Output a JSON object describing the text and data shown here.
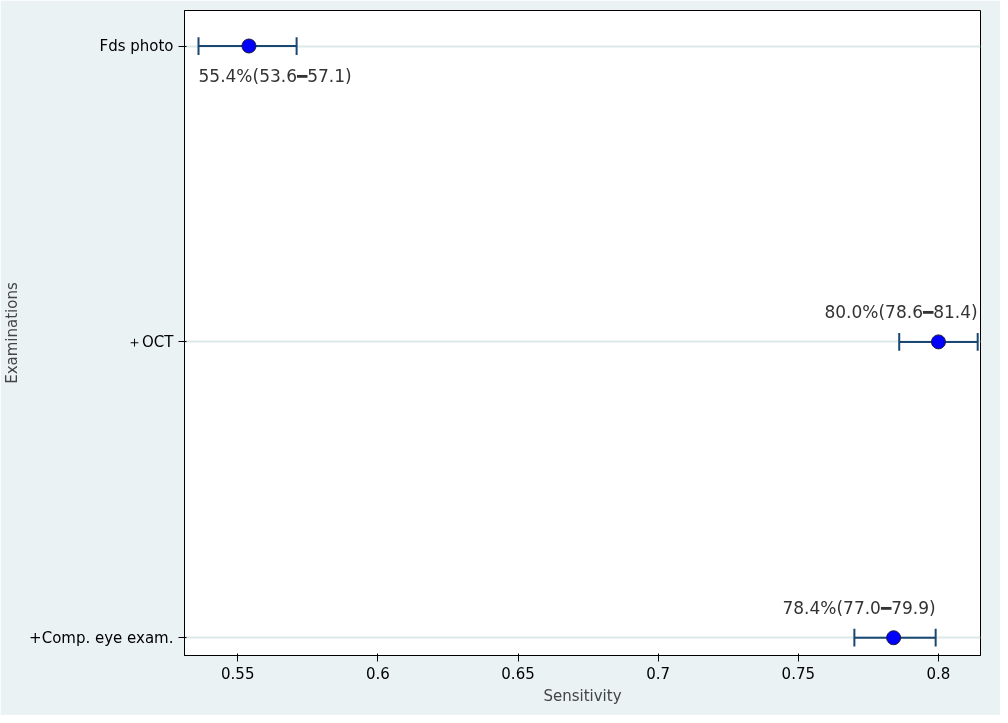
{
  "chart_data": {
    "type": "scatter",
    "orientation": "horizontal",
    "xlabel": "Sensitivity",
    "ylabel": "Examinations",
    "categories": [
      "Fds photo",
      "＋OCT",
      "+Comp. eye exam."
    ],
    "values": [
      0.554,
      0.8,
      0.784
    ],
    "errors": [
      [
        0.536,
        0.571
      ],
      [
        0.786,
        0.814
      ],
      [
        0.77,
        0.799
      ]
    ],
    "value_labels": [
      "55.4%(53.6━57.1)",
      "80.0%(78.6━81.4)",
      "78.4%(77.0━79.9)"
    ],
    "color": "#0000ff",
    "marker": "circle",
    "grid": "y",
    "xlim": [
      0.531,
      0.815
    ],
    "xticks": [
      0.55,
      0.6,
      0.65,
      0.7,
      0.75,
      0.8
    ]
  }
}
